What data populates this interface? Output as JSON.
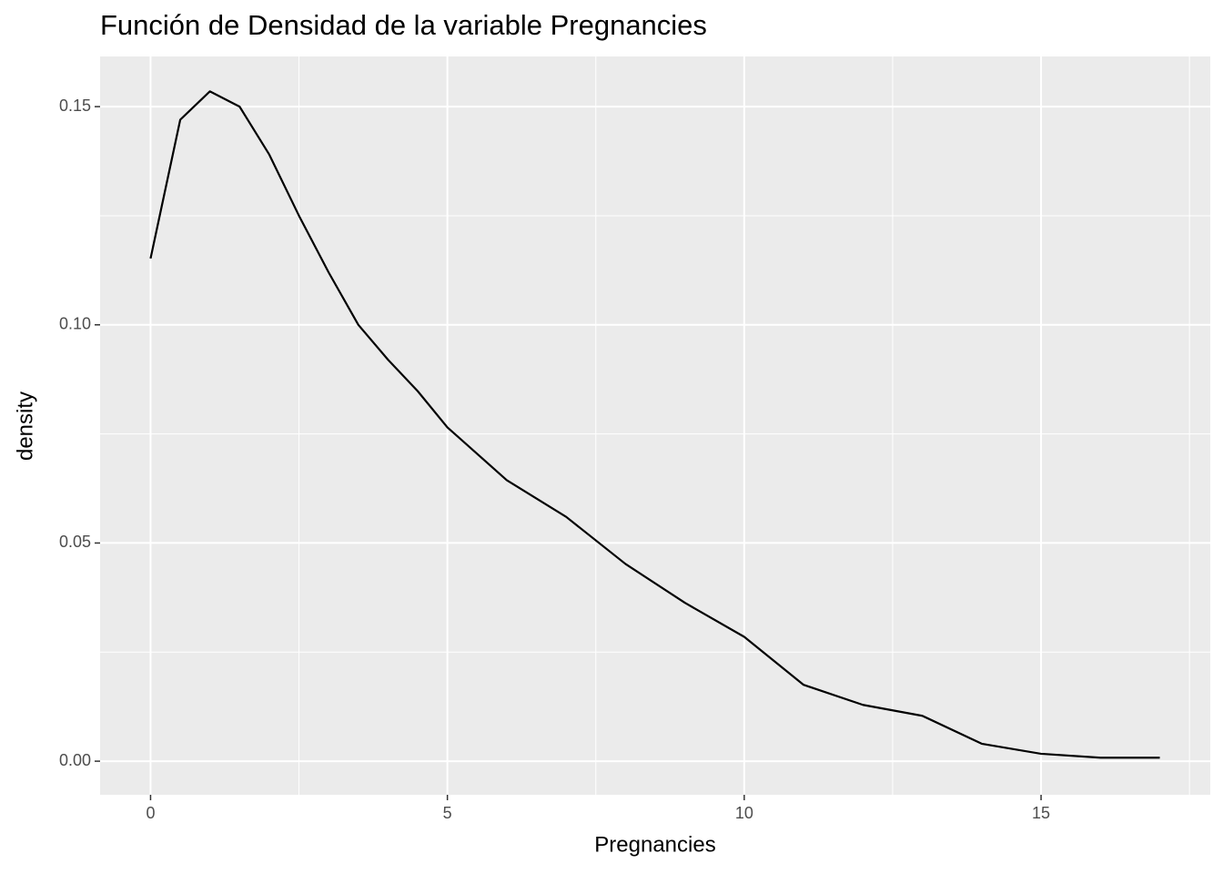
{
  "chart_data": {
    "type": "line",
    "title": "Función de Densidad de la variable Pregnancies",
    "x_label": "Pregnancies",
    "y_label": "density",
    "x": [
      0,
      0.5,
      1,
      1.5,
      2,
      2.5,
      3,
      3.5,
      4,
      4.5,
      5,
      6,
      7,
      8,
      9,
      10,
      11,
      12,
      13,
      14,
      15,
      16,
      17
    ],
    "series": [
      {
        "color": "#000000",
        "values": [
          0.1152,
          0.147,
          0.1535,
          0.15,
          0.139,
          0.125,
          0.112,
          0.1,
          0.092,
          0.0848,
          0.0765,
          0.0644,
          0.056,
          0.0452,
          0.0363,
          0.0285,
          0.0175,
          0.0129,
          0.0104,
          0.004,
          0.0017,
          0.0008,
          0.0008
        ]
      }
    ],
    "xlim": [
      -0.85,
      17.85
    ],
    "ylim": [
      -0.0077,
      0.1615
    ],
    "xticks": [
      0,
      5,
      10,
      15
    ],
    "yticks": [
      {
        "value": 0,
        "label": "0.00"
      },
      {
        "value": 0.05,
        "label": "0.05"
      },
      {
        "value": 0.1,
        "label": "0.10"
      },
      {
        "value": 0.15,
        "label": "0.15"
      }
    ],
    "x_minor_ticks": [
      2.5,
      7.5,
      12.5,
      17.5
    ],
    "y_minor_ticks": [
      0.025,
      0.075,
      0.125
    ],
    "grid": true
  }
}
